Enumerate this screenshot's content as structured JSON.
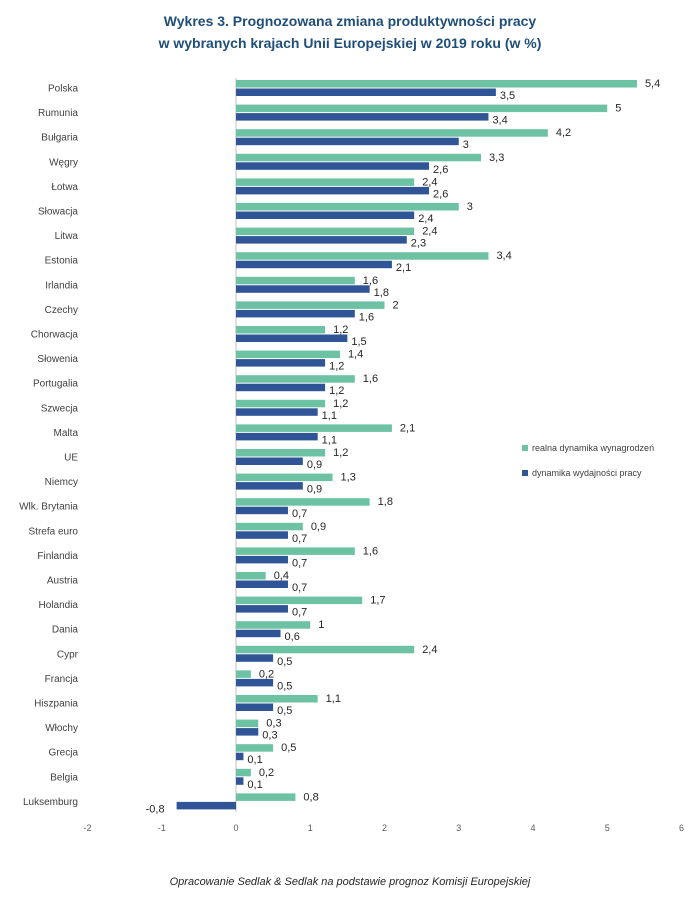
{
  "title": {
    "line1": "Wykres 3. Prognozowana zmiana produktywności pracy",
    "line2": "w wybranych krajach Unii Europejskiej w 2019 roku (w %)"
  },
  "source": "Opracowanie Sedlak & Sedlak na podstawie prognoz Komisji Europejskiej",
  "colors": {
    "wages": "#6cc2a3",
    "productivity": "#2f5597",
    "axis": "#bfbfbf"
  },
  "chart_data": {
    "type": "bar",
    "orientation": "horizontal",
    "title": "Wykres 3. Prognozowana zmiana produktywności pracy w wybranych krajach Unii Europejskiej w 2019 roku (w %)",
    "categories": [
      "Polska",
      "Rumunia",
      "Bułgaria",
      "Węgry",
      "Łotwa",
      "Słowacja",
      "Litwa",
      "Estonia",
      "Irlandia",
      "Czechy",
      "Chorwacja",
      "Słowenia",
      "Portugalia",
      "Szwecja",
      "Malta",
      "UE",
      "Niemcy",
      "Wlk. Brytania",
      "Strefa euro",
      "Finlandia",
      "Austria",
      "Holandia",
      "Dania",
      "Cypr",
      "Francja",
      "Hiszpania",
      "Włochy",
      "Grecja",
      "Belgia",
      "Luksemburg"
    ],
    "series": [
      {
        "name": "realna dynamika wynagrodzeń",
        "values": [
          5.4,
          5,
          4.2,
          3.3,
          2.4,
          3,
          2.4,
          3.4,
          1.6,
          2,
          1.2,
          1.4,
          1.6,
          1.2,
          2.1,
          1.2,
          1.3,
          1.8,
          0.9,
          1.6,
          0.4,
          1.7,
          1,
          2.4,
          0.2,
          1.1,
          0.3,
          0.5,
          0.2,
          0.8
        ]
      },
      {
        "name": "dynamika wydajności pracy",
        "values": [
          3.5,
          3.4,
          3,
          2.6,
          2.6,
          2.4,
          2.3,
          2.1,
          1.8,
          1.6,
          1.5,
          1.2,
          1.2,
          1.1,
          1.1,
          0.9,
          0.9,
          0.7,
          0.7,
          0.7,
          0.7,
          0.7,
          0.6,
          0.5,
          0.5,
          0.5,
          0.3,
          0.1,
          0.1,
          -0.8
        ]
      }
    ],
    "value_labels": {
      "wages": [
        "5,4",
        "5",
        "4,2",
        "3,3",
        "2,4",
        "3",
        "2,4",
        "3,4",
        "1,6",
        "2",
        "1,2",
        "1,4",
        "1,6",
        "1,2",
        "2,1",
        "1,2",
        "1,3",
        "1,8",
        "0,9",
        "1,6",
        "0,4",
        "1,7",
        "1",
        "2,4",
        "0,2",
        "1,1",
        "0,3",
        "0,5",
        "0,2",
        "0,8"
      ],
      "productivity": [
        "3,5",
        "3,4",
        "3",
        "2,6",
        "2,6",
        "2,4",
        "2,3",
        "2,1",
        "1,8",
        "1,6",
        "1,5",
        "1,2",
        "1,2",
        "1,1",
        "1,1",
        "0,9",
        "0,9",
        "0,7",
        "0,7",
        "0,7",
        "0,7",
        "0,7",
        "0,6",
        "0,5",
        "0,5",
        "0,5",
        "0,3",
        "0,1",
        "0,1",
        "-0,8"
      ]
    },
    "x_ticks": [
      "-2",
      "-1",
      "0",
      "1",
      "2",
      "3",
      "4",
      "5",
      "6"
    ],
    "xlim": [
      -2,
      6
    ],
    "grid": false,
    "legend_position": "right"
  }
}
